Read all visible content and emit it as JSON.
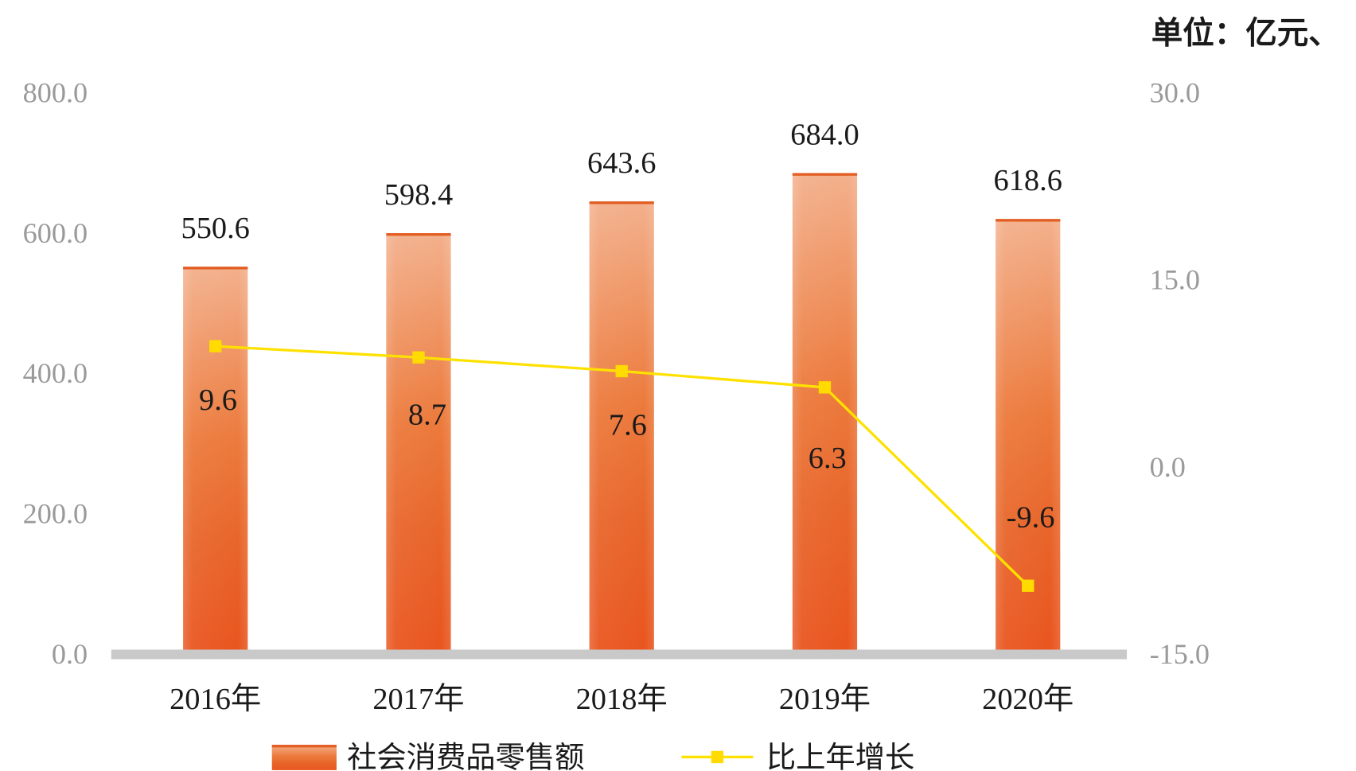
{
  "unit": "单位：亿元、",
  "colors": {
    "bar_top": "#f3b08c",
    "bar_mid": "#ec7a3c",
    "bar_low": "#e8662b",
    "bar_bottom": "#e9551f",
    "bar_edge": "#e25d22",
    "line": "#ffe100",
    "marker": "#ffdb00",
    "axis_text": "#9a9a9a",
    "baseline": "#c9c9c9",
    "label_text": "#1a1a1a"
  },
  "chart_data": {
    "type": "bar",
    "categories": [
      "2016年",
      "2017年",
      "2018年",
      "2019年",
      "2020年"
    ],
    "series": [
      {
        "name": "社会消费品零售额",
        "type": "bar",
        "axis": "left",
        "values": [
          550.6,
          598.4,
          643.6,
          684.0,
          618.6
        ]
      },
      {
        "name": "比上年增长",
        "type": "line",
        "axis": "right",
        "values": [
          9.6,
          8.7,
          7.6,
          6.3,
          -9.6
        ]
      }
    ],
    "y_left": {
      "range": [
        0,
        800
      ],
      "ticks": [
        0,
        200,
        400,
        600,
        800
      ]
    },
    "y_right": {
      "range": [
        -15,
        30
      ],
      "ticks": [
        -15,
        0,
        15,
        30
      ]
    },
    "grid": false,
    "legend": "bottom"
  }
}
